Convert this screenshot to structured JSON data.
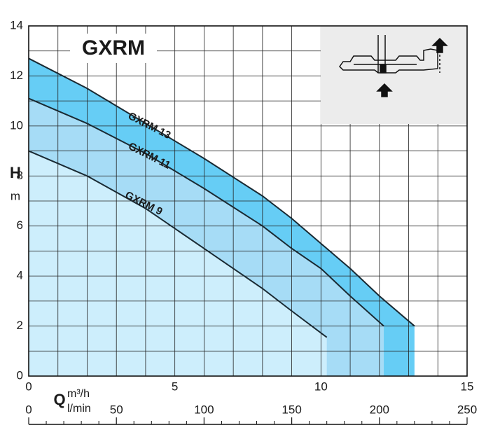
{
  "chart_data": {
    "type": "line",
    "title": "GXRM",
    "x_label": "Q",
    "x_unit": "m³/h",
    "x2_unit": "l/min",
    "y_label": "H",
    "y_unit": "m",
    "xlim": [
      0,
      15
    ],
    "xticks": [
      0,
      5,
      10,
      15
    ],
    "x2lim": [
      0,
      250
    ],
    "x2ticks": [
      0,
      50,
      100,
      150,
      200,
      250
    ],
    "ylim": [
      0,
      14
    ],
    "yticks": [
      0,
      2,
      4,
      6,
      8,
      10,
      12,
      14
    ],
    "grid": true,
    "fill_area": true,
    "series": [
      {
        "name": "GXRM 13",
        "color": "#1a2a33",
        "fill": "#66cdf5",
        "x": [
          0,
          2,
          4,
          6,
          8,
          9,
          10,
          11,
          12,
          13.2
        ],
        "values": [
          12.7,
          11.5,
          10.1,
          8.7,
          7.2,
          6.3,
          5.3,
          4.3,
          3.2,
          2.0
        ]
      },
      {
        "name": "GXRM 11",
        "color": "#1a2a33",
        "fill": "#a6dcf6",
        "x": [
          0,
          2,
          4,
          6,
          8,
          9,
          10,
          11,
          12.15
        ],
        "values": [
          11.1,
          10.1,
          8.9,
          7.5,
          6.0,
          5.1,
          4.3,
          3.2,
          2.0
        ]
      },
      {
        "name": "GXRM 9",
        "color": "#1a2a33",
        "fill": "#cdeefc",
        "x": [
          0,
          2,
          4,
          6,
          8,
          9,
          10.2
        ],
        "values": [
          9.0,
          8.0,
          6.7,
          5.1,
          3.5,
          2.6,
          1.55
        ]
      }
    ]
  }
}
